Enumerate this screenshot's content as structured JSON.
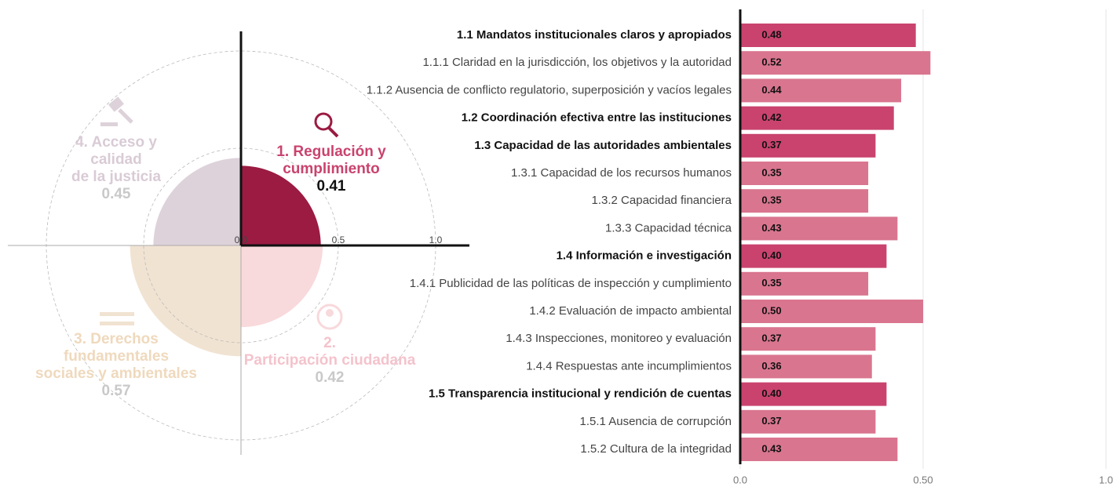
{
  "chart_data": [
    {
      "type": "polar",
      "categories": [
        "1. Regulación y cumplimiento",
        "2. Participación ciudadana",
        "3. Derechos fundamentales sociales y ambientales",
        "4. Acceso y calidad de la justicia"
      ],
      "values": [
        0.41,
        0.42,
        0.57,
        0.45
      ],
      "colors": [
        "#9b1b42",
        "#f8d9dc",
        "#f1e3d2",
        "#ddd2da"
      ],
      "label_colors": [
        "#c9436e",
        "#f4c3cc",
        "#efd9bd",
        "#d9cbd5"
      ],
      "value_colors": [
        "#111111",
        "#c9c9c9",
        "#c9c9c9",
        "#c9c9c9"
      ],
      "rlim": [
        0,
        1
      ],
      "rticks": [
        {
          "value": 0,
          "label": "0.0"
        },
        0.5,
        {
          "value": 1,
          "label": "1.0"
        }
      ]
    },
    {
      "type": "hbar",
      "categories": [
        "1.1 Mandatos institucionales claros y apropiados",
        "1.1.1 Claridad en la jurisdicción, los objetivos y la autoridad",
        "1.1.2 Ausencia de conflicto regulatorio, superposición y vacíos legales",
        "1.2 Coordinación efectiva entre las instituciones",
        "1.3 Capacidad de las autoridades ambientales",
        "1.3.1 Capacidad de los recursos humanos",
        "1.3.2 Capacidad financiera",
        "1.3.3 Capacidad técnica",
        "1.4 Información e investigación",
        "1.4.1 Publicidad de las políticas de inspección y cumplimiento",
        "1.4.2 Evaluación de impacto ambiental",
        "1.4.3 Inspecciones, monitoreo y evaluación",
        "1.4.4 Respuestas ante incumplimientos",
        "1.5 Transparencia institucional y rendición de cuentas",
        "1.5.1 Ausencia de corrupción",
        "1.5.2 Cultura de la integridad"
      ],
      "values": [
        0.48,
        0.52,
        0.44,
        0.42,
        0.37,
        0.35,
        0.35,
        0.43,
        0.4,
        0.35,
        0.5,
        0.37,
        0.36,
        0.4,
        0.37,
        0.43
      ],
      "value_labels": [
        "0.48",
        "0.52",
        "0.44",
        "0.42",
        "0.37",
        "0.35",
        "0.35",
        "0.43",
        "0.40",
        "0.35",
        "0.50",
        "0.37",
        "0.36",
        "0.40",
        "0.37",
        "0.43"
      ],
      "colors": [
        "#c9436e",
        "#d9758f",
        "#d9758f",
        "#c9436e",
        "#c9436e",
        "#d9758f",
        "#d9758f",
        "#d9758f",
        "#c9436e",
        "#d9758f",
        "#d9758f",
        "#d9758f",
        "#d9758f",
        "#c9436e",
        "#d9758f",
        "#d9758f"
      ],
      "xlim": [
        0,
        1
      ],
      "xticks": [
        {
          "value": 0,
          "label": "0.0"
        },
        {
          "value": 0.5,
          "label": "0.50"
        },
        {
          "value": 1,
          "label": "1.0"
        }
      ],
      "grid": true
    }
  ]
}
